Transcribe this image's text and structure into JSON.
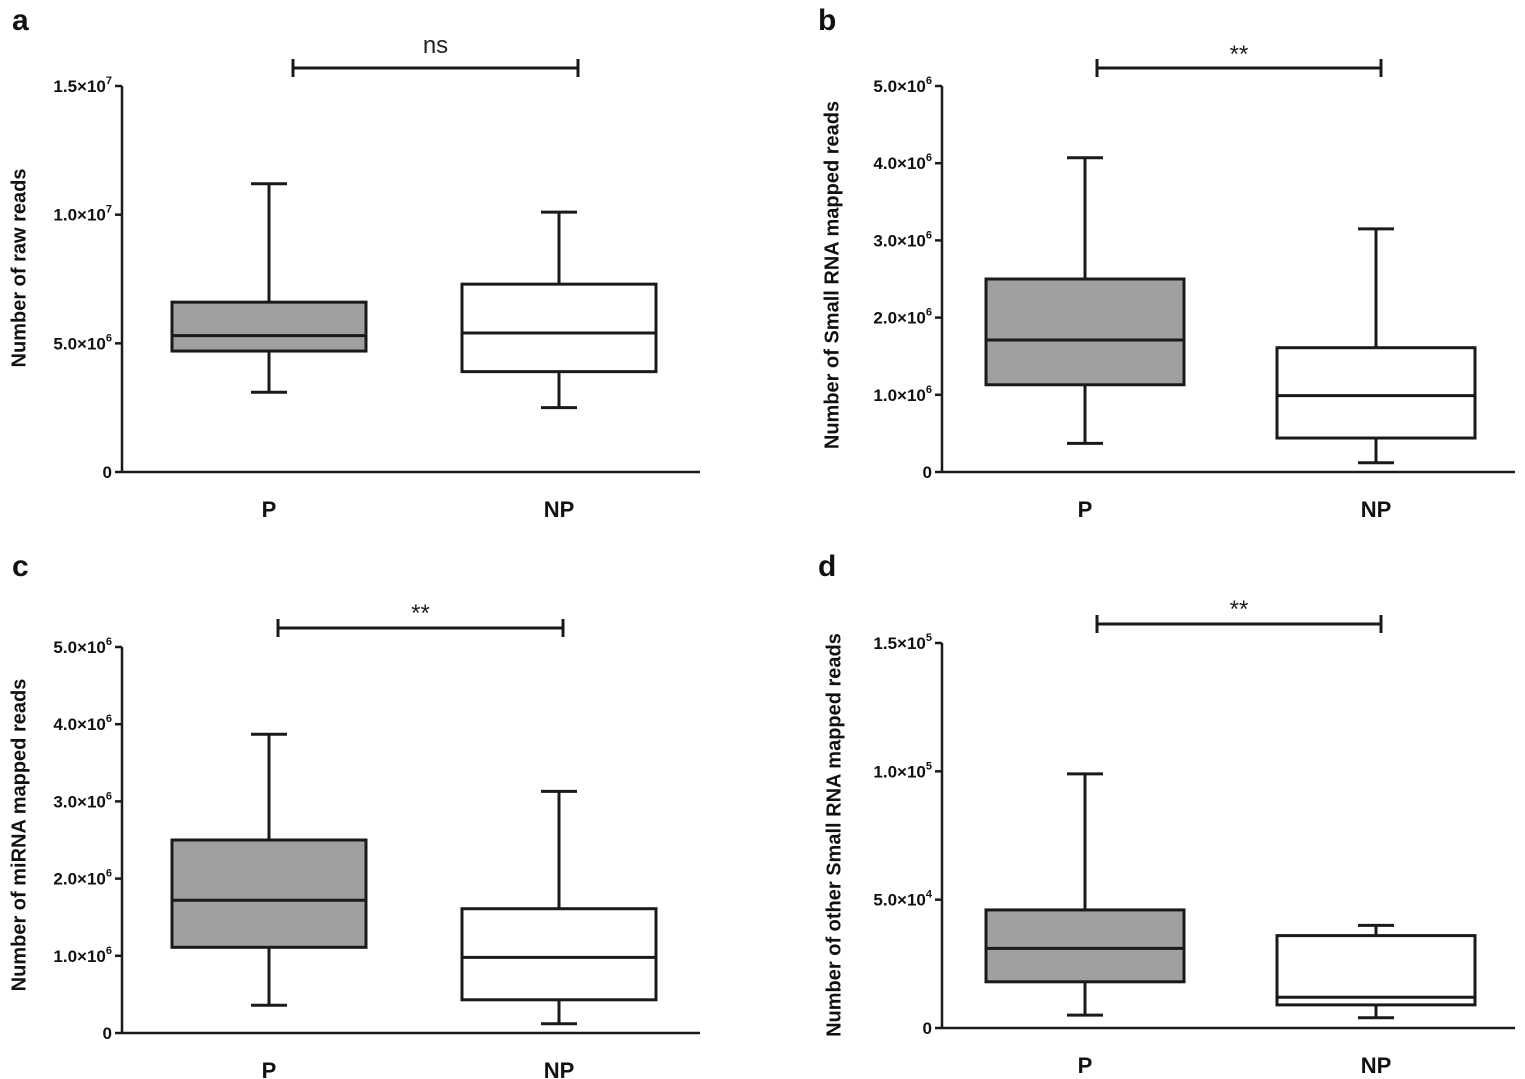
{
  "colors": {
    "P": "#a0a0a0",
    "NP": "#ffffff",
    "stroke": "#1a1a1a"
  },
  "chart_data": [
    {
      "type": "box",
      "panel": "a",
      "ylabel": "Number of raw reads",
      "ylim": [
        0,
        15000000
      ],
      "yticks": [
        {
          "value": 0,
          "label": "0",
          "exp": ""
        },
        {
          "value": 5000000,
          "label": "5.0×10",
          "exp": "6"
        },
        {
          "value": 10000000,
          "label": "1.0×10",
          "exp": "7"
        },
        {
          "value": 15000000,
          "label": "1.5×10",
          "exp": "7"
        }
      ],
      "categories": [
        "P",
        "NP"
      ],
      "boxes": [
        {
          "name": "P",
          "min": 3100000,
          "q1": 4700000,
          "median": 5300000,
          "q3": 6600000,
          "max": 11200000
        },
        {
          "name": "NP",
          "min": 2500000,
          "q1": 3900000,
          "median": 5400000,
          "q3": 7300000,
          "max": 10100000
        }
      ],
      "significance": "ns"
    },
    {
      "type": "box",
      "panel": "b",
      "ylabel": "Number of Small RNA mapped reads",
      "ylim": [
        0,
        5000000
      ],
      "yticks": [
        {
          "value": 0,
          "label": "0",
          "exp": ""
        },
        {
          "value": 1000000,
          "label": "1.0×10",
          "exp": "6"
        },
        {
          "value": 2000000,
          "label": "2.0×10",
          "exp": "6"
        },
        {
          "value": 3000000,
          "label": "3.0×10",
          "exp": "6"
        },
        {
          "value": 4000000,
          "label": "4.0×10",
          "exp": "6"
        },
        {
          "value": 5000000,
          "label": "5.0×10",
          "exp": "6"
        }
      ],
      "categories": [
        "P",
        "NP"
      ],
      "boxes": [
        {
          "name": "P",
          "min": 370000,
          "q1": 1130000,
          "median": 1710000,
          "q3": 2500000,
          "max": 4070000
        },
        {
          "name": "NP",
          "min": 120000,
          "q1": 440000,
          "median": 990000,
          "q3": 1610000,
          "max": 3150000
        }
      ],
      "significance": "**"
    },
    {
      "type": "box",
      "panel": "c",
      "ylabel": "Number of miRNA mapped reads",
      "ylim": [
        0,
        5000000
      ],
      "yticks": [
        {
          "value": 0,
          "label": "0",
          "exp": ""
        },
        {
          "value": 1000000,
          "label": "1.0×10",
          "exp": "6"
        },
        {
          "value": 2000000,
          "label": "2.0×10",
          "exp": "6"
        },
        {
          "value": 3000000,
          "label": "3.0×10",
          "exp": "6"
        },
        {
          "value": 4000000,
          "label": "4.0×10",
          "exp": "6"
        },
        {
          "value": 5000000,
          "label": "5.0×10",
          "exp": "6"
        }
      ],
      "categories": [
        "P",
        "NP"
      ],
      "boxes": [
        {
          "name": "P",
          "min": 360000,
          "q1": 1110000,
          "median": 1720000,
          "q3": 2500000,
          "max": 3870000
        },
        {
          "name": "NP",
          "min": 120000,
          "q1": 430000,
          "median": 980000,
          "q3": 1610000,
          "max": 3130000
        }
      ],
      "significance": "**"
    },
    {
      "type": "box",
      "panel": "d",
      "ylabel": "Number of other Small RNA mapped reads",
      "ylim": [
        0,
        150000
      ],
      "yticks": [
        {
          "value": 0,
          "label": "0",
          "exp": ""
        },
        {
          "value": 50000,
          "label": "5.0×10",
          "exp": "4"
        },
        {
          "value": 100000,
          "label": "1.0×10",
          "exp": "5"
        },
        {
          "value": 150000,
          "label": "1.5×10",
          "exp": "5"
        }
      ],
      "categories": [
        "P",
        "NP"
      ],
      "boxes": [
        {
          "name": "P",
          "min": 5000,
          "q1": 18000,
          "median": 31000,
          "q3": 46000,
          "max": 99000
        },
        {
          "name": "NP",
          "min": 4000,
          "q1": 9000,
          "median": 12000,
          "q3": 36000,
          "max": 40000
        }
      ],
      "significance": "**"
    }
  ]
}
